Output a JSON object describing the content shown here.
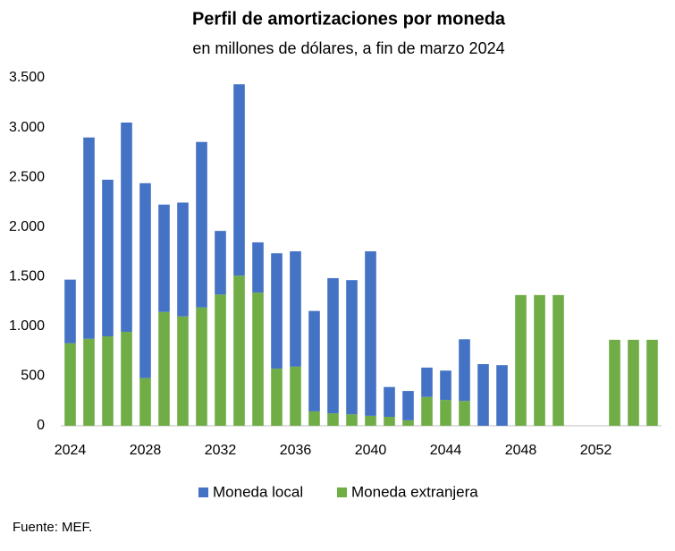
{
  "chart_data": {
    "type": "stacked_bar",
    "title": "Perfil de amortizaciones por moneda",
    "subtitle": "en millones de dólares, a fin de marzo 2024",
    "source": "Fuente: MEF.",
    "categories": [
      "2024",
      null,
      null,
      null,
      "2028",
      null,
      null,
      null,
      "2032",
      null,
      null,
      null,
      "2036",
      null,
      null,
      null,
      "2040",
      null,
      null,
      null,
      "2044",
      null,
      null,
      null,
      "2048",
      null,
      null,
      null,
      "2052",
      null,
      null,
      null
    ],
    "series": [
      {
        "name": "Moneda local",
        "color": "#4472c4",
        "values": [
          640,
          2025,
          1575,
          2105,
          1960,
          1080,
          1145,
          1665,
          640,
          1925,
          505,
          1160,
          1160,
          1010,
          1360,
          1350,
          1655,
          300,
          295,
          295,
          295,
          620,
          620,
          610,
          0,
          0,
          0,
          0,
          0,
          0,
          0,
          0
        ]
      },
      {
        "name": "Moneda extranjera",
        "color": "#70ad47",
        "values": [
          830,
          875,
          900,
          945,
          480,
          1145,
          1100,
          1190,
          1320,
          1510,
          1340,
          575,
          595,
          145,
          125,
          115,
          100,
          90,
          55,
          290,
          260,
          250,
          0,
          0,
          1315,
          1315,
          1315,
          0,
          0,
          865,
          865,
          865
        ]
      }
    ],
    "ylim": [
      0,
      3500
    ],
    "yticks": [
      0,
      500,
      {
        "value": 1000,
        "label": "1.000"
      },
      {
        "value": 1500,
        "label": "1.500"
      },
      {
        "value": 2000,
        "label": "2.000"
      },
      {
        "value": 2500,
        "label": "2.500"
      },
      {
        "value": 3000,
        "label": "3.000"
      },
      {
        "value": 3500,
        "label": "3.500"
      }
    ],
    "grid": false,
    "legend": "bottom"
  }
}
